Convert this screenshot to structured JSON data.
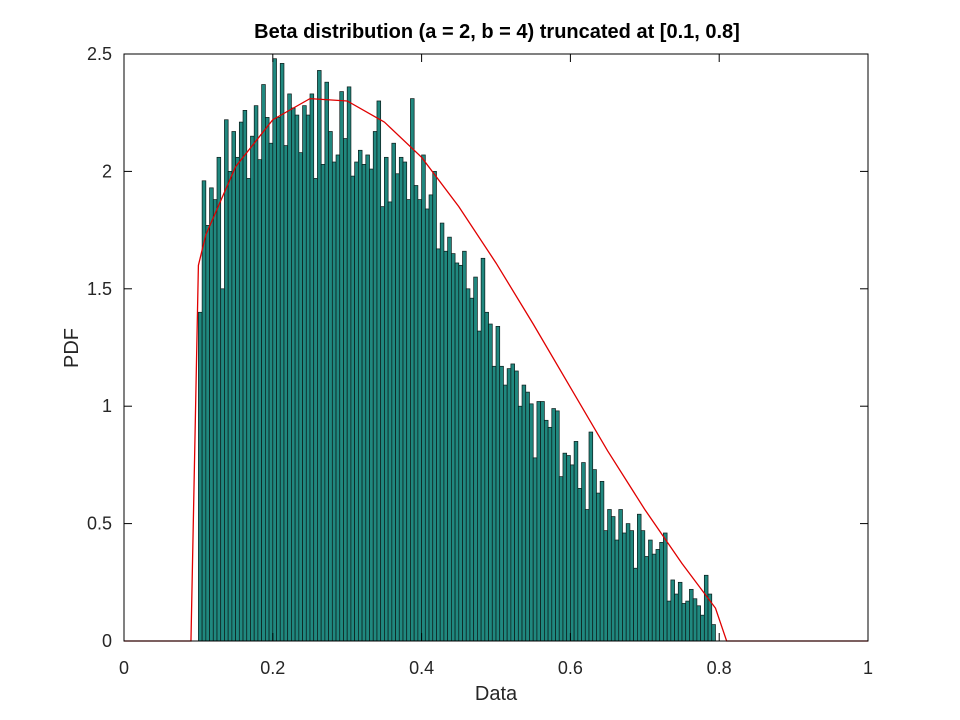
{
  "chart_data": {
    "type": "bar",
    "title": "Beta distribution (a = 2, b = 4) truncated at [0.1, 0.8]",
    "xlabel": "Data",
    "ylabel": "PDF",
    "xlim": [
      0,
      1
    ],
    "ylim": [
      0,
      2.5
    ],
    "xticks": [
      "0",
      "0.2",
      "0.4",
      "0.6",
      "0.8",
      "1"
    ],
    "yticks": [
      "0",
      "0.5",
      "1",
      "1.5",
      "2",
      "2.5"
    ],
    "grid": false,
    "colors": {
      "bars": "#20887f",
      "bar_edge": "#0b1a18",
      "pdf_line": "#e00000",
      "axes": "#000000"
    },
    "histogram": {
      "bin_start": 0.1,
      "bin_width": 0.005,
      "values": [
        1.4,
        1.96,
        1.77,
        1.93,
        1.88,
        2.06,
        1.5,
        2.22,
        2.0,
        2.17,
        2.06,
        2.21,
        2.26,
        1.97,
        2.15,
        2.28,
        2.05,
        2.37,
        2.23,
        2.12,
        2.48,
        2.23,
        2.46,
        2.11,
        2.33,
        2.27,
        2.24,
        2.08,
        2.28,
        2.24,
        2.33,
        1.97,
        2.43,
        2.03,
        2.38,
        2.17,
        2.04,
        2.07,
        2.34,
        2.14,
        2.36,
        1.98,
        2.04,
        2.09,
        2.03,
        2.07,
        2.01,
        2.17,
        2.3,
        1.85,
        2.06,
        1.87,
        2.12,
        1.99,
        2.06,
        2.04,
        1.88,
        2.31,
        1.94,
        1.88,
        2.07,
        1.84,
        1.9,
        2.0,
        1.67,
        1.78,
        1.66,
        1.72,
        1.65,
        1.61,
        1.6,
        1.66,
        1.5,
        1.46,
        1.55,
        1.32,
        1.63,
        1.4,
        1.35,
        1.17,
        1.34,
        1.17,
        1.09,
        1.16,
        1.18,
        1.15,
        1.0,
        1.09,
        1.06,
        1.01,
        0.78,
        1.02,
        1.02,
        0.94,
        0.91,
        0.99,
        0.98,
        0.7,
        0.8,
        0.79,
        0.75,
        0.85,
        0.65,
        0.76,
        0.56,
        0.89,
        0.73,
        0.63,
        0.68,
        0.47,
        0.56,
        0.53,
        0.43,
        0.56,
        0.46,
        0.5,
        0.47,
        0.31,
        0.54,
        0.47,
        0.36,
        0.43,
        0.37,
        0.39,
        0.42,
        0.46,
        0.17,
        0.26,
        0.2,
        0.25,
        0.16,
        0.17,
        0.22,
        0.18,
        0.15,
        0.11,
        0.28,
        0.2,
        0.07
      ]
    },
    "pdf_line": {
      "name": "PDF",
      "x": [
        0,
        0.09,
        0.1,
        0.11,
        0.15,
        0.2,
        0.25,
        0.3,
        0.35,
        0.4,
        0.45,
        0.5,
        0.55,
        0.6,
        0.65,
        0.7,
        0.75,
        0.795,
        0.81,
        1
      ],
      "y": [
        0,
        0,
        1.6,
        1.73,
        2.02,
        2.22,
        2.31,
        2.3,
        2.21,
        2.06,
        1.85,
        1.61,
        1.35,
        1.08,
        0.81,
        0.56,
        0.33,
        0.14,
        0,
        0
      ]
    }
  }
}
